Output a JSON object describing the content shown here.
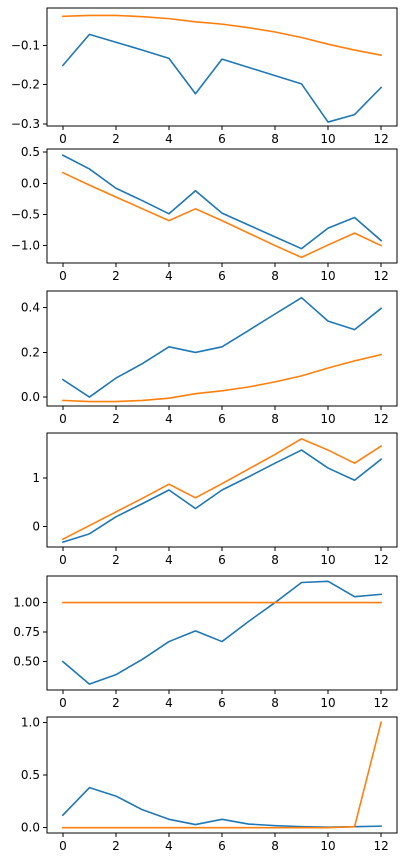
{
  "chart_data": [
    {
      "type": "line",
      "x": [
        0,
        1,
        2,
        3,
        4,
        5,
        6,
        7,
        8,
        9,
        10,
        11,
        12
      ],
      "xlim": [
        -0.6,
        12.6
      ],
      "ylim": [
        -0.305,
        -0.005
      ],
      "xticks": [
        0,
        2,
        4,
        6,
        8,
        10,
        12
      ],
      "xtick_labels": [
        "0",
        "2",
        "4",
        "6",
        "8",
        "10",
        "12"
      ],
      "yticks": [
        -0.1,
        -0.2,
        -0.3
      ],
      "ytick_labels": [
        "−0.1",
        "−0.2",
        "−0.3"
      ],
      "series": [
        {
          "color": "#1f77b4",
          "values": [
            -0.151,
            -0.072,
            -0.092,
            -0.112,
            -0.133,
            -0.223,
            -0.135,
            -0.156,
            -0.177,
            -0.198,
            -0.295,
            -0.276,
            -0.207
          ]
        },
        {
          "color": "#ff7f0e",
          "values": [
            -0.026,
            -0.024,
            -0.024,
            -0.027,
            -0.032,
            -0.04,
            -0.046,
            -0.055,
            -0.066,
            -0.08,
            -0.097,
            -0.112,
            -0.125
          ]
        }
      ]
    },
    {
      "type": "line",
      "x": [
        0,
        1,
        2,
        3,
        4,
        5,
        6,
        7,
        8,
        9,
        10,
        11,
        12
      ],
      "xlim": [
        -0.6,
        12.6
      ],
      "ylim": [
        -1.28,
        0.55
      ],
      "xticks": [
        0,
        2,
        4,
        6,
        8,
        10,
        12
      ],
      "xtick_labels": [
        "0",
        "2",
        "4",
        "6",
        "8",
        "10",
        "12"
      ],
      "yticks": [
        0.5,
        0.0,
        -0.5,
        -1.0
      ],
      "ytick_labels": [
        "0.5",
        "0.0",
        "−0.5",
        "−1.0"
      ],
      "series": [
        {
          "color": "#1f77b4",
          "values": [
            0.45,
            0.23,
            -0.08,
            -0.28,
            -0.49,
            -0.12,
            -0.48,
            -0.67,
            -0.86,
            -1.05,
            -0.72,
            -0.55,
            -0.92
          ]
        },
        {
          "color": "#ff7f0e",
          "values": [
            0.17,
            -0.03,
            -0.22,
            -0.41,
            -0.6,
            -0.41,
            -0.6,
            -0.8,
            -1.0,
            -1.19,
            -0.99,
            -0.8,
            -1.0
          ]
        }
      ]
    },
    {
      "type": "line",
      "x": [
        0,
        1,
        2,
        3,
        4,
        5,
        6,
        7,
        8,
        9,
        10,
        11,
        12
      ],
      "xlim": [
        -0.6,
        12.6
      ],
      "ylim": [
        -0.04,
        0.475
      ],
      "xticks": [
        0,
        2,
        4,
        6,
        8,
        10,
        12
      ],
      "xtick_labels": [
        "0",
        "2",
        "4",
        "6",
        "8",
        "10",
        "12"
      ],
      "yticks": [
        0.4,
        0.2,
        0.0
      ],
      "ytick_labels": [
        "0.4",
        "0.2",
        "0.0"
      ],
      "series": [
        {
          "color": "#1f77b4",
          "values": [
            0.078,
            0.0,
            0.085,
            0.15,
            0.225,
            0.2,
            0.225,
            0.298,
            0.372,
            0.445,
            0.34,
            0.302,
            0.397
          ]
        },
        {
          "color": "#ff7f0e",
          "values": [
            -0.015,
            -0.02,
            -0.02,
            -0.015,
            -0.005,
            0.015,
            0.028,
            0.045,
            0.068,
            0.095,
            0.13,
            0.162,
            0.19
          ]
        }
      ]
    },
    {
      "type": "line",
      "x": [
        0,
        1,
        2,
        3,
        4,
        5,
        6,
        7,
        8,
        9,
        10,
        11,
        12
      ],
      "xlim": [
        -0.6,
        12.6
      ],
      "ylim": [
        -0.42,
        1.92
      ],
      "xticks": [
        0,
        2,
        4,
        6,
        8,
        10,
        12
      ],
      "xtick_labels": [
        "0",
        "2",
        "4",
        "6",
        "8",
        "10",
        "12"
      ],
      "yticks": [
        1,
        0
      ],
      "ytick_labels": [
        "1",
        "0"
      ],
      "series": [
        {
          "color": "#1f77b4",
          "values": [
            -0.32,
            -0.15,
            0.2,
            0.47,
            0.75,
            0.37,
            0.75,
            1.02,
            1.3,
            1.57,
            1.2,
            0.95,
            1.38
          ]
        },
        {
          "color": "#ff7f0e",
          "values": [
            -0.26,
            0.02,
            0.3,
            0.58,
            0.87,
            0.59,
            0.88,
            1.18,
            1.48,
            1.8,
            1.57,
            1.3,
            1.65
          ]
        }
      ]
    },
    {
      "type": "line",
      "x": [
        0,
        1,
        2,
        3,
        4,
        5,
        6,
        7,
        8,
        9,
        10,
        11,
        12
      ],
      "xlim": [
        -0.6,
        12.6
      ],
      "ylim": [
        0.26,
        1.225
      ],
      "xticks": [
        0,
        2,
        4,
        6,
        8,
        10,
        12
      ],
      "xtick_labels": [
        "0",
        "2",
        "4",
        "6",
        "8",
        "10",
        "12"
      ],
      "yticks": [
        1.0,
        0.75,
        0.5
      ],
      "ytick_labels": [
        "1.00",
        "0.75",
        "0.50"
      ],
      "series": [
        {
          "color": "#1f77b4",
          "values": [
            0.5,
            0.31,
            0.39,
            0.52,
            0.67,
            0.76,
            0.67,
            0.84,
            1.0,
            1.17,
            1.18,
            1.05,
            1.07
          ]
        },
        {
          "color": "#ff7f0e",
          "values": [
            1.0,
            1.0,
            1.0,
            1.0,
            1.0,
            1.0,
            1.0,
            1.0,
            1.0,
            1.0,
            1.0,
            1.0,
            1.0
          ]
        }
      ]
    },
    {
      "type": "line",
      "x": [
        0,
        1,
        2,
        3,
        4,
        5,
        6,
        7,
        8,
        9,
        10,
        11,
        12
      ],
      "xlim": [
        -0.6,
        12.6
      ],
      "ylim": [
        -0.05,
        1.05
      ],
      "xticks": [
        0,
        2,
        4,
        6,
        8,
        10,
        12
      ],
      "xtick_labels": [
        "0",
        "2",
        "4",
        "6",
        "8",
        "10",
        "12"
      ],
      "yticks": [
        1.0,
        0.5,
        0.0
      ],
      "ytick_labels": [
        "1.0",
        "0.5",
        "0.0"
      ],
      "series": [
        {
          "color": "#1f77b4",
          "values": [
            0.12,
            0.38,
            0.3,
            0.17,
            0.08,
            0.03,
            0.08,
            0.035,
            0.02,
            0.01,
            0.005,
            0.01,
            0.015
          ]
        },
        {
          "color": "#ff7f0e",
          "values": [
            0.0,
            0.0,
            0.0,
            0.0,
            0.0,
            0.0,
            0.0,
            0.0,
            0.0,
            0.0,
            0.0,
            0.01,
            1.0
          ]
        }
      ]
    }
  ]
}
